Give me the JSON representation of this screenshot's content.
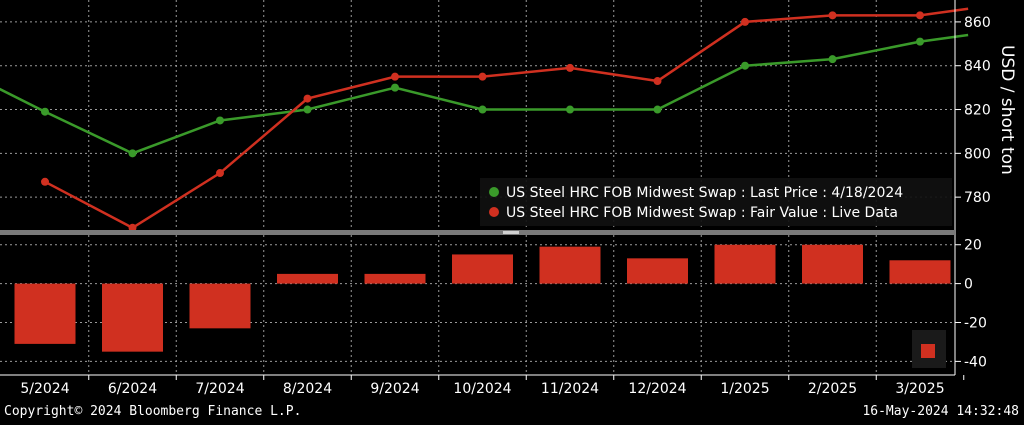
{
  "chart_data": [
    {
      "type": "line",
      "ylabel": "USD / short ton",
      "ylim": [
        765,
        870
      ],
      "yticks": [
        780,
        800,
        820,
        840,
        860
      ],
      "grid": true,
      "legend_position": "bottom-right",
      "series": [
        {
          "name": "US Steel HRC FOB Midwest Swap : Last Price : 4/18/2024",
          "color": "#3a9a2a",
          "points": [
            [
              -0.55,
              830
            ],
            [
              0,
              819
            ],
            [
              1,
              800
            ],
            [
              2,
              815
            ],
            [
              3,
              820
            ],
            [
              4,
              830
            ],
            [
              5,
              820
            ],
            [
              6,
              820
            ],
            [
              7,
              820
            ],
            [
              8,
              840
            ],
            [
              9,
              843
            ],
            [
              10,
              851
            ],
            [
              10.55,
              854
            ]
          ]
        },
        {
          "name": "US Steel HRC FOB Midwest Swap : Fair Value : Live Data",
          "color": "#d03020",
          "points": [
            [
              0,
              787
            ],
            [
              1,
              766
            ],
            [
              2,
              791
            ],
            [
              3,
              825
            ],
            [
              4,
              835
            ],
            [
              5,
              835
            ],
            [
              6,
              839
            ],
            [
              7,
              833
            ],
            [
              8,
              860
            ],
            [
              9,
              863
            ],
            [
              10,
              863
            ],
            [
              10.55,
              866
            ]
          ]
        }
      ]
    },
    {
      "type": "bar",
      "categories": [
        "5/2024",
        "6/2024",
        "7/2024",
        "8/2024",
        "9/2024",
        "10/2024",
        "11/2024",
        "12/2024",
        "1/2025",
        "2/2025",
        "3/2025"
      ],
      "values": [
        -31,
        -35,
        -23,
        5,
        5,
        15,
        19,
        13,
        20,
        20,
        12
      ],
      "color": "#d03020",
      "ylim": [
        -47,
        25
      ],
      "yticks": [
        -40,
        -20,
        0,
        20
      ],
      "grid": true
    }
  ],
  "footer": {
    "copyright": "Copyright© 2024 Bloomberg Finance L.P.",
    "timestamp": "16-May-2024 14:32:48"
  }
}
